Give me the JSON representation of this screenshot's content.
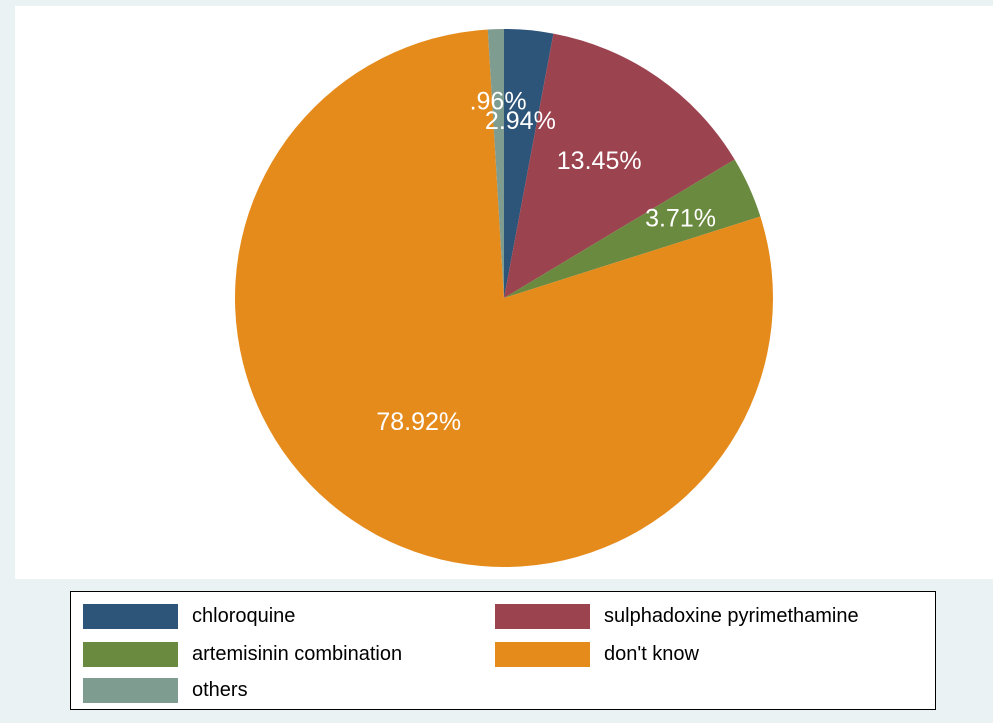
{
  "chart_data": {
    "type": "pie",
    "start_angle_deg": 90,
    "direction": "clockwise",
    "slices": [
      {
        "label": "chloroquine",
        "value": 2.94,
        "value_label": "2.94%",
        "color": "#2d5479"
      },
      {
        "label": "sulphadoxine pyrimethamine",
        "value": 13.45,
        "value_label": "13.45%",
        "color": "#9c4350"
      },
      {
        "label": "artemisinin combination",
        "value": 3.71,
        "value_label": "3.71%",
        "color": "#6a8a3f"
      },
      {
        "label": "don't know",
        "value": 78.92,
        "value_label": "78.92%",
        "color": "#e58b1c"
      },
      {
        "label": "others",
        "value": 0.96,
        "value_label": ".96%",
        "color": "#7f9c91"
      }
    ],
    "legend": {
      "placement": "bottom",
      "columns": 2,
      "entries": [
        "chloroquine",
        "sulphadoxine pyrimethamine",
        "artemisinin combination",
        "don't know",
        "others"
      ]
    }
  },
  "colors": {
    "background": "#eaf2f3",
    "plot_background": "#ffffff",
    "slice_label_text": "#ffffff"
  }
}
